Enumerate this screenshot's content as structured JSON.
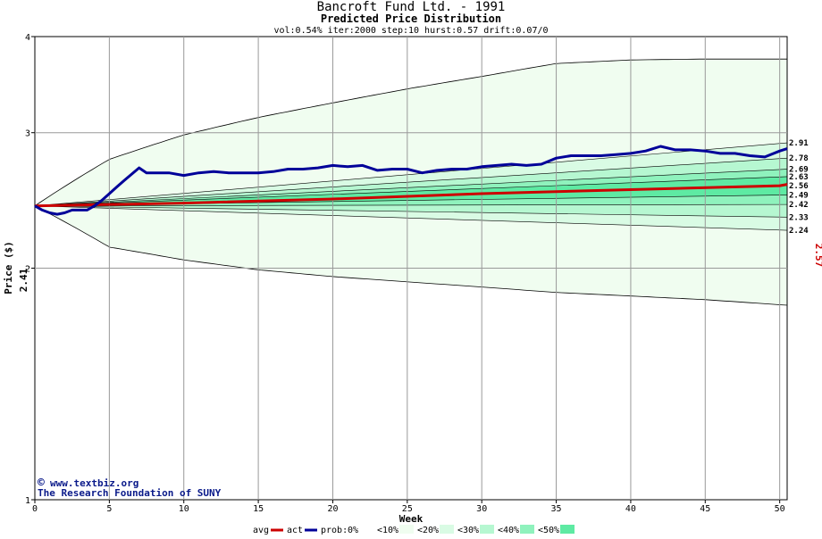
{
  "chart_data": {
    "type": "area",
    "title": "Bancroft Fund Ltd. - 1991",
    "subtitle": "Predicted Price Distribution",
    "params": "vol:0.54% iter:2000 step:10 hurst:0.57 drift:0.07/0",
    "xlabel": "Week",
    "ylabel": "Price ($)",
    "xlim": [
      0,
      50.5
    ],
    "ylim": [
      1,
      4
    ],
    "x_ticks": [
      0,
      5,
      10,
      15,
      20,
      25,
      30,
      35,
      40,
      45,
      50
    ],
    "y_ticks": [
      1,
      2,
      3,
      4
    ],
    "grid": true,
    "start_value": "2.41",
    "end_value": "2.57",
    "band_labels": [
      "2.91",
      "2.78",
      "2.69",
      "2.63",
      "2.56",
      "2.49",
      "2.42",
      "2.33",
      "2.24"
    ],
    "envelope": {
      "x": [
        0,
        5,
        10,
        15,
        20,
        25,
        30,
        35,
        40,
        45,
        50.5
      ],
      "upper": [
        2.41,
        2.77,
        2.98,
        3.14,
        3.28,
        3.42,
        3.55,
        3.69,
        3.73,
        3.74,
        3.74
      ],
      "lower": [
        2.41,
        2.13,
        2.05,
        1.99,
        1.95,
        1.92,
        1.89,
        1.86,
        1.84,
        1.82,
        1.79
      ]
    },
    "percentile_bands": {
      "x": [
        0,
        50.5
      ],
      "series": [
        {
          "name": "<10%",
          "start": 2.41,
          "end": 2.91
        },
        {
          "name": "<20%",
          "start": 2.41,
          "end": 2.78
        },
        {
          "name": "<30%",
          "start": 2.41,
          "end": 2.69
        },
        {
          "name": "<40%",
          "start": 2.41,
          "end": 2.63
        },
        {
          "name": "<50%",
          "start": 2.41,
          "end": 2.49
        },
        {
          "name": "<40%",
          "start": 2.41,
          "end": 2.42
        },
        {
          "name": "<30%",
          "start": 2.41,
          "end": 2.33
        },
        {
          "name": "<20%",
          "start": 2.41,
          "end": 2.24
        }
      ]
    },
    "series": [
      {
        "name": "avg",
        "color": "#cc0000",
        "x": [
          0,
          10,
          20,
          30,
          40,
          50,
          50.5
        ],
        "values": [
          2.41,
          2.43,
          2.46,
          2.5,
          2.53,
          2.56,
          2.57
        ]
      },
      {
        "name": "act",
        "color": "#000099",
        "x": [
          0,
          0.5,
          1,
          1.5,
          2,
          2.5,
          3,
          3.5,
          4,
          4.5,
          5,
          5.5,
          6,
          6.5,
          7,
          7.5,
          8,
          9,
          10,
          11,
          12,
          13,
          14,
          15,
          16,
          17,
          18,
          19,
          20,
          21,
          22,
          23,
          24,
          25,
          26,
          27,
          28,
          29,
          30,
          31,
          32,
          33,
          34,
          35,
          36,
          37,
          38,
          39,
          40,
          41,
          42,
          43,
          44,
          45,
          46,
          47,
          48,
          49,
          50,
          50.5
        ],
        "values": [
          2.41,
          2.38,
          2.36,
          2.35,
          2.36,
          2.38,
          2.38,
          2.38,
          2.41,
          2.45,
          2.5,
          2.55,
          2.6,
          2.65,
          2.7,
          2.66,
          2.66,
          2.66,
          2.64,
          2.66,
          2.67,
          2.66,
          2.66,
          2.66,
          2.67,
          2.69,
          2.69,
          2.7,
          2.72,
          2.71,
          2.72,
          2.68,
          2.69,
          2.69,
          2.66,
          2.68,
          2.69,
          2.69,
          2.71,
          2.72,
          2.73,
          2.72,
          2.73,
          2.78,
          2.8,
          2.8,
          2.8,
          2.81,
          2.82,
          2.84,
          2.88,
          2.85,
          2.85,
          2.84,
          2.82,
          2.82,
          2.8,
          2.79,
          2.84,
          2.86
        ]
      }
    ],
    "legend": {
      "placement": "bottom",
      "lines": [
        {
          "label": "avg",
          "color": "#cc0000"
        },
        {
          "label": "act",
          "color": "#000099"
        }
      ],
      "prob_label": "prob:",
      "swatches": [
        {
          "label": "0%",
          "color": "#ffffff"
        },
        {
          "label": "<10%",
          "color": "#f0fdf0"
        },
        {
          "label": "<20%",
          "color": "#d9fbe4"
        },
        {
          "label": "<30%",
          "color": "#b6f7d1"
        },
        {
          "label": "<40%",
          "color": "#8ff2bd"
        },
        {
          "label": "<50%",
          "color": "#5eeaa3"
        }
      ]
    },
    "credit": {
      "copyright_symbol": "©",
      "site": "www.textbiz.org",
      "org": "The Research Foundation of SUNY"
    },
    "colors": {
      "band_fill": [
        "#f0fdf0",
        "#d9fbe4",
        "#b6f7d1",
        "#8ff2bd",
        "#5eeaa3"
      ],
      "grid": "#999999",
      "avg_line": "#cc0000",
      "act_line": "#000099",
      "end_value": "#cc0000"
    }
  }
}
